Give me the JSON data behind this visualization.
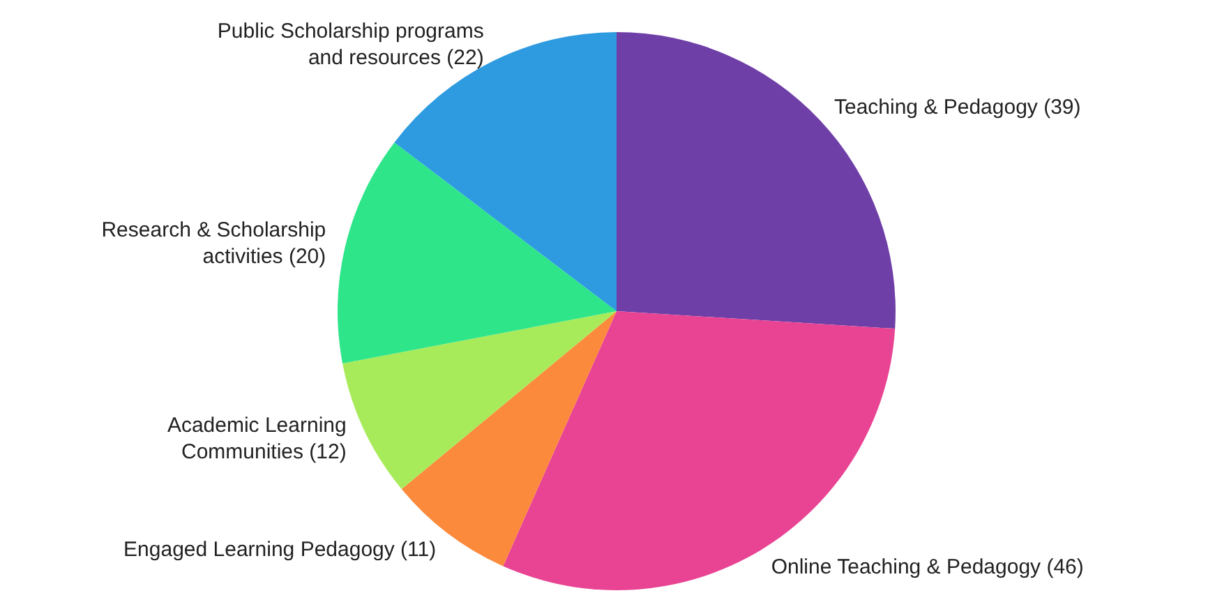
{
  "chart_data": {
    "type": "pie",
    "categories": [
      "Teaching & Pedagogy",
      "Online Teaching & Pedagogy",
      "Engaged Learning Pedagogy",
      "Academic Learning Communities",
      "Research & Scholarship activities",
      "Public Scholarship programs and resources"
    ],
    "values": [
      39,
      46,
      11,
      12,
      20,
      22
    ],
    "value_labels": [
      "(39)",
      "(46)",
      "(11)",
      "(12)",
      "(20)",
      "(22)"
    ],
    "colors": [
      "#6f3fa8",
      "#e94393",
      "#fb8a3c",
      "#a8eb5a",
      "#2ee58a",
      "#2e9be0"
    ],
    "legend": false
  }
}
